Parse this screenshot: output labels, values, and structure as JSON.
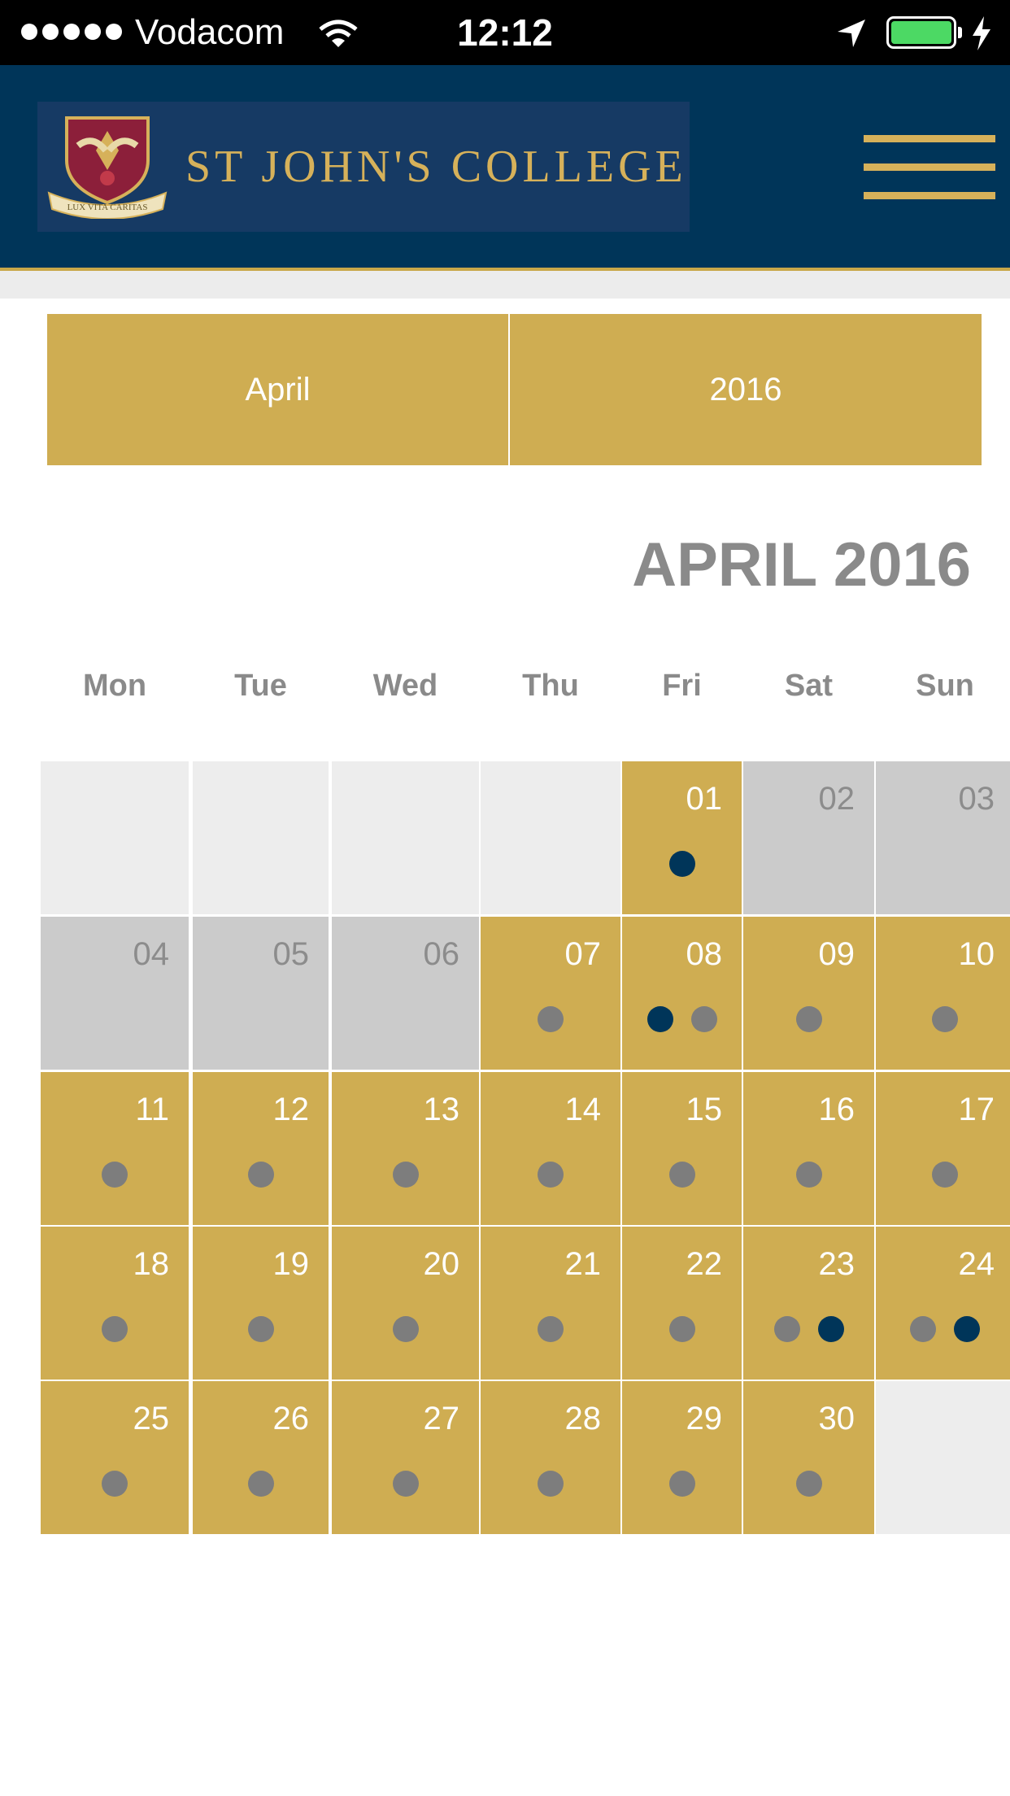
{
  "status_bar": {
    "carrier": "Vodacom",
    "time": "12:12",
    "battery_color": "#4cd964"
  },
  "header": {
    "logo_text": "ST JOHN'S COLLEGE",
    "logo_motto": "LUX VITA CARITAS",
    "menu_icon": "hamburger-icon",
    "bg_color": "#003559",
    "accent_color": "#d6b15a"
  },
  "selectors": {
    "month": "April",
    "year": "2016",
    "bg_color": "#cfad52"
  },
  "calendar": {
    "title": "APRIL 2016",
    "weekdays": [
      "Mon",
      "Tue",
      "Wed",
      "Thu",
      "Fri",
      "Sat",
      "Sun"
    ],
    "colors": {
      "event_day": "#cfad52",
      "past_day": "#cbcbcb",
      "empty": "#ededed",
      "dot_grey": "#7d7d7d",
      "dot_navy": "#003559"
    },
    "weeks": [
      [
        {
          "day": "",
          "state": "empty",
          "dots": []
        },
        {
          "day": "",
          "state": "empty",
          "dots": []
        },
        {
          "day": "",
          "state": "empty",
          "dots": []
        },
        {
          "day": "",
          "state": "empty",
          "dots": []
        },
        {
          "day": "01",
          "state": "event",
          "dots": [
            "navy"
          ]
        },
        {
          "day": "02",
          "state": "disabled",
          "dots": []
        },
        {
          "day": "03",
          "state": "disabled",
          "dots": []
        }
      ],
      [
        {
          "day": "04",
          "state": "disabled",
          "dots": []
        },
        {
          "day": "05",
          "state": "disabled",
          "dots": []
        },
        {
          "day": "06",
          "state": "disabled",
          "dots": []
        },
        {
          "day": "07",
          "state": "event",
          "dots": [
            "grey"
          ]
        },
        {
          "day": "08",
          "state": "event",
          "dots": [
            "navy",
            "grey"
          ]
        },
        {
          "day": "09",
          "state": "event",
          "dots": [
            "grey"
          ]
        },
        {
          "day": "10",
          "state": "event",
          "dots": [
            "grey"
          ]
        }
      ],
      [
        {
          "day": "11",
          "state": "event",
          "dots": [
            "grey"
          ]
        },
        {
          "day": "12",
          "state": "event",
          "dots": [
            "grey"
          ]
        },
        {
          "day": "13",
          "state": "event",
          "dots": [
            "grey"
          ]
        },
        {
          "day": "14",
          "state": "event",
          "dots": [
            "grey"
          ]
        },
        {
          "day": "15",
          "state": "event",
          "dots": [
            "grey"
          ]
        },
        {
          "day": "16",
          "state": "event",
          "dots": [
            "grey"
          ]
        },
        {
          "day": "17",
          "state": "event",
          "dots": [
            "grey"
          ]
        }
      ],
      [
        {
          "day": "18",
          "state": "event",
          "dots": [
            "grey"
          ]
        },
        {
          "day": "19",
          "state": "event",
          "dots": [
            "grey"
          ]
        },
        {
          "day": "20",
          "state": "event",
          "dots": [
            "grey"
          ]
        },
        {
          "day": "21",
          "state": "event",
          "dots": [
            "grey"
          ]
        },
        {
          "day": "22",
          "state": "event",
          "dots": [
            "grey"
          ]
        },
        {
          "day": "23",
          "state": "event",
          "dots": [
            "grey",
            "navy"
          ]
        },
        {
          "day": "24",
          "state": "event",
          "dots": [
            "grey",
            "navy"
          ]
        }
      ],
      [
        {
          "day": "25",
          "state": "event",
          "dots": [
            "grey"
          ]
        },
        {
          "day": "26",
          "state": "event",
          "dots": [
            "grey"
          ]
        },
        {
          "day": "27",
          "state": "event",
          "dots": [
            "grey"
          ]
        },
        {
          "day": "28",
          "state": "event",
          "dots": [
            "grey"
          ]
        },
        {
          "day": "29",
          "state": "event",
          "dots": [
            "grey"
          ]
        },
        {
          "day": "30",
          "state": "event",
          "dots": [
            "grey"
          ]
        },
        {
          "day": "",
          "state": "empty",
          "dots": []
        }
      ]
    ]
  }
}
